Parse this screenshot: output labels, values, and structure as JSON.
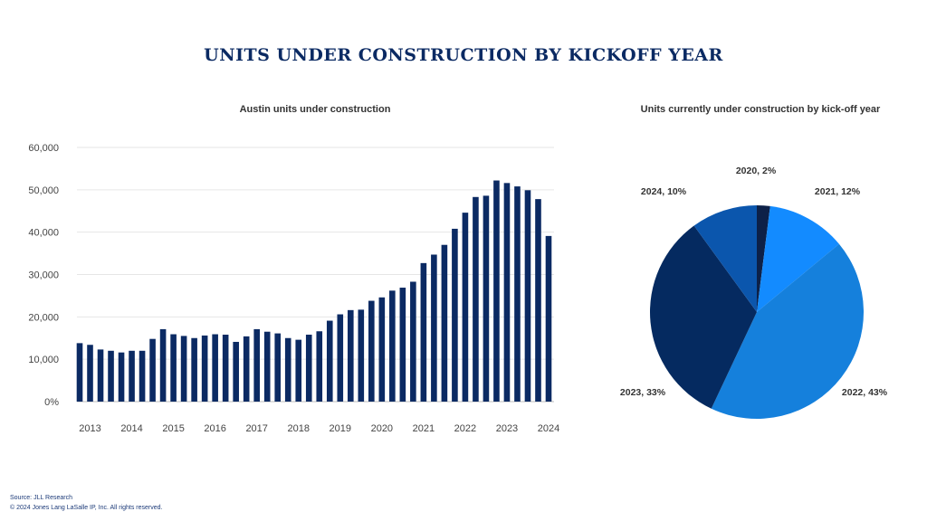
{
  "title": "UNITS UNDER CONSTRUCTION BY KICKOFF YEAR",
  "footer": {
    "source": "Source: JLL Research",
    "copyright": "© 2024 Jones Lang LaSalle IP, Inc. All rights reserved."
  },
  "chart_data": [
    {
      "type": "bar",
      "title": "Austin units under construction",
      "xlabel": "",
      "ylabel": "",
      "ylim": [
        0,
        60000
      ],
      "grid": true,
      "yticks": [
        0,
        10000,
        20000,
        30000,
        40000,
        50000,
        60000
      ],
      "ytick_labels": [
        "0%",
        "10,000",
        "20,000",
        "30,000",
        "40,000",
        "50,000",
        "60,000"
      ],
      "xtick_labels": [
        "2013",
        "2014",
        "2015",
        "2016",
        "2017",
        "2018",
        "2019",
        "2020",
        "2021",
        "2022",
        "2023",
        "2024"
      ],
      "periods": "quarterly, 2013 Q1 – 2024 Q2",
      "values": [
        13800,
        13400,
        12300,
        12000,
        11600,
        12000,
        12000,
        14800,
        17100,
        15900,
        15500,
        15000,
        15600,
        15900,
        15800,
        14100,
        15400,
        17100,
        16500,
        16100,
        15000,
        14600,
        15800,
        16600,
        19100,
        20600,
        21600,
        21700,
        23800,
        24600,
        26200,
        26900,
        28300,
        32700,
        34700,
        37000,
        40800,
        44600,
        48300,
        48600,
        52200,
        51600,
        50800,
        49900,
        47800,
        39100
      ],
      "color": "#0b2a63"
    },
    {
      "type": "pie",
      "title": "Units currently under construction by kick-off year",
      "slices": [
        {
          "label": "2020, 2%",
          "value": 2,
          "color": "#0d2148"
        },
        {
          "label": "2021, 12%",
          "value": 12,
          "color": "#138bff"
        },
        {
          "label": "2022, 43%",
          "value": 43,
          "color": "#1580dc"
        },
        {
          "label": "2023, 33%",
          "value": 33,
          "color": "#052a60"
        },
        {
          "label": "2024, 10%",
          "value": 10,
          "color": "#0b56ad"
        }
      ]
    }
  ]
}
